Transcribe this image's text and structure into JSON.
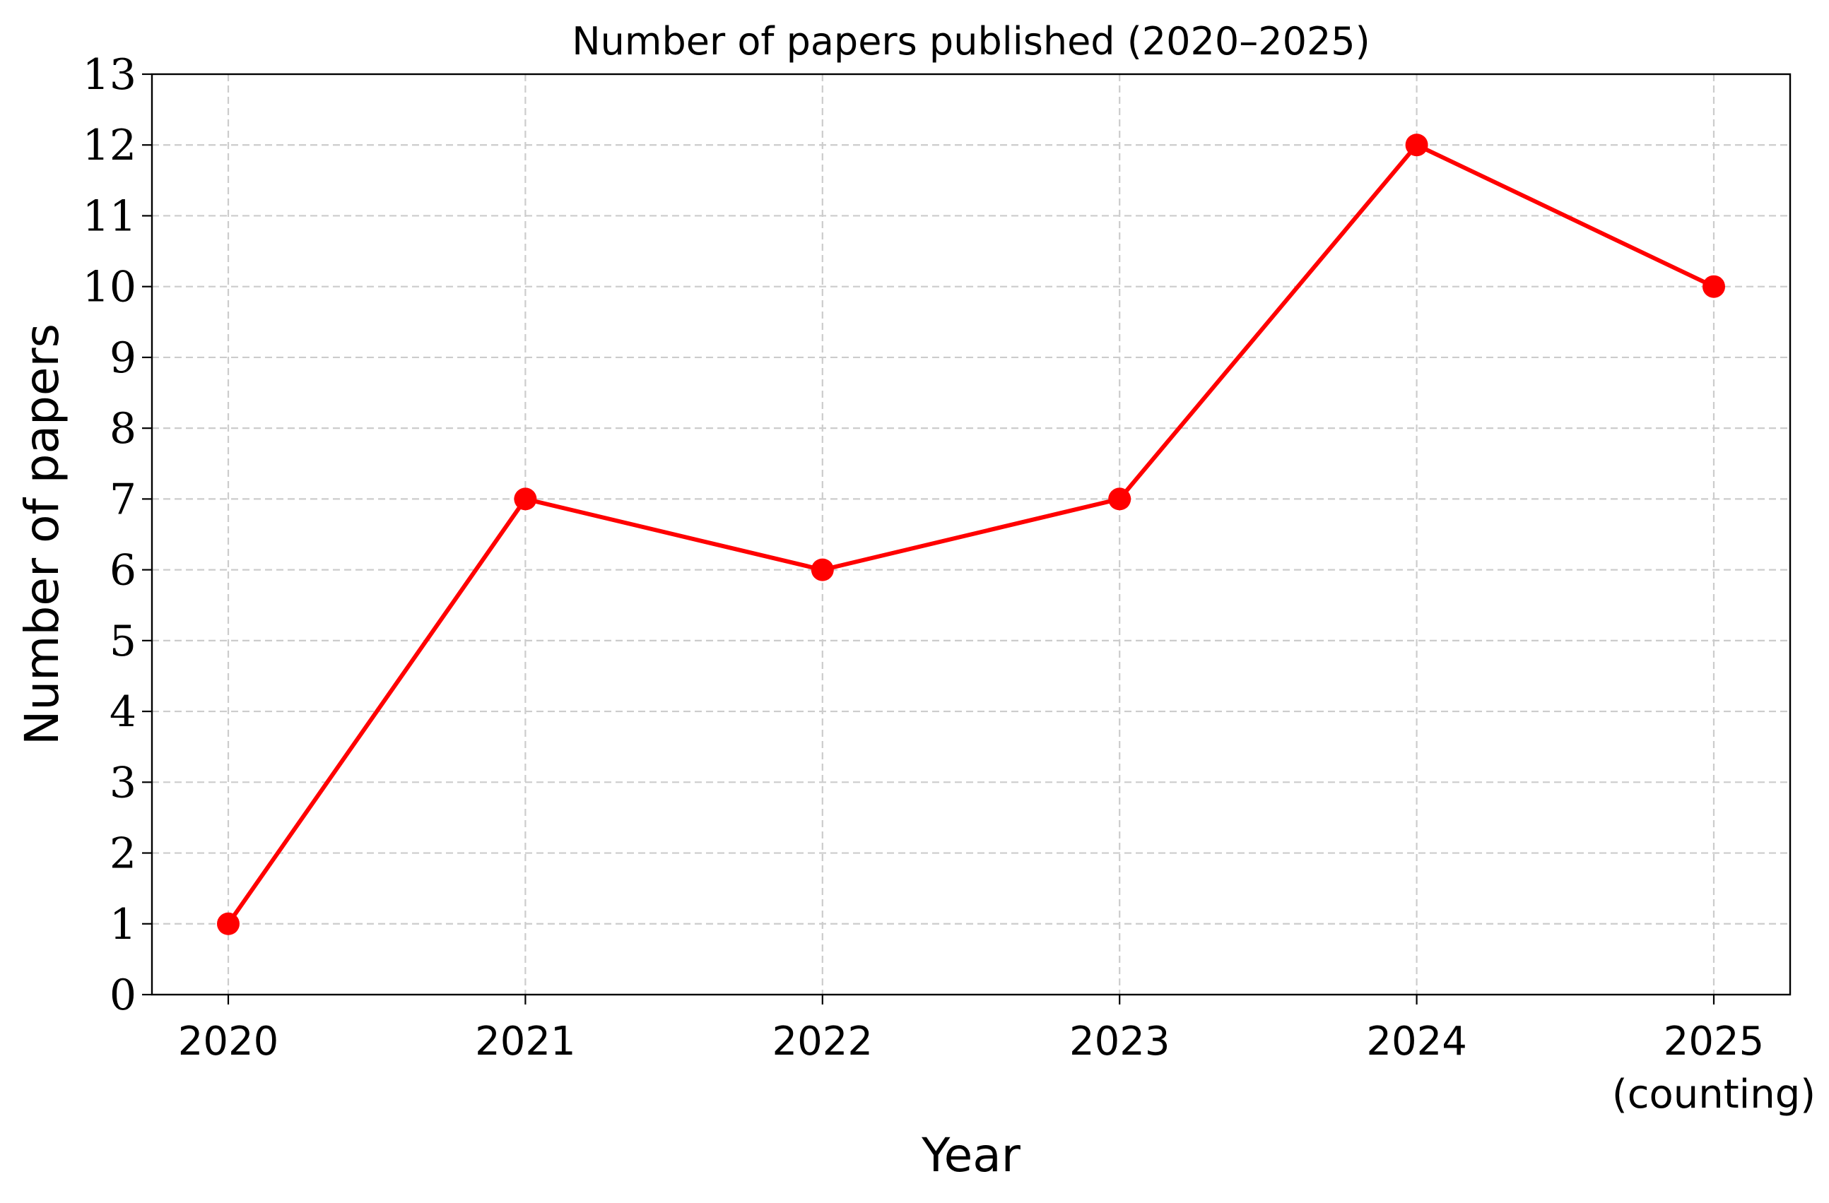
{
  "chart_data": {
    "type": "line",
    "title": "Number of papers published (2020–2025)",
    "xlabel": "Year",
    "ylabel": "Number of papers",
    "categories": [
      "2020",
      "2021",
      "2022",
      "2023",
      "2024",
      "2025"
    ],
    "category_sublabels": [
      "",
      "",
      "",
      "",
      "",
      "(counting)"
    ],
    "series": [
      {
        "values": [
          1,
          7,
          6,
          7,
          12,
          10
        ],
        "color": "#ff0000",
        "marker": "circle"
      }
    ],
    "ylim": [
      0,
      13
    ],
    "yticks": [
      0,
      1,
      2,
      3,
      4,
      5,
      6,
      7,
      8,
      9,
      10,
      11,
      12,
      13
    ],
    "grid": true,
    "grid_style": "dashed",
    "grid_color": "#cccccc",
    "legend": "none"
  }
}
